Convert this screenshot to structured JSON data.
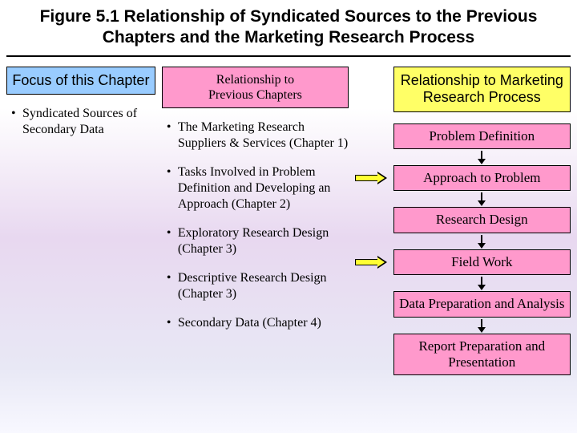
{
  "title": "Figure 5.1  Relationship of Syndicated Sources to the Previous Chapters and the Marketing Research Process",
  "colors": {
    "hdr_left_bg": "#99ccff",
    "hdr_mid_bg": "#ff99cc",
    "hdr_right_bg": "#ffff66",
    "stage_bg": "#ff99cc",
    "harrow_fill": "#ffff33"
  },
  "left": {
    "header": "Focus of this Chapter",
    "bullets": [
      "Syndicated Sources of Secondary Data"
    ]
  },
  "mid": {
    "header_line1": "Relationship to",
    "header_line2": "Previous Chapters",
    "bullets": [
      "The Marketing Research Suppliers & Services (Chapter 1)",
      "Tasks Involved in Problem Definition and Developing an Approach (Chapter 2)",
      "Exploratory Research Design (Chapter 3)",
      "Descriptive Research Design (Chapter 3)",
      "Secondary Data (Chapter 4)"
    ]
  },
  "right": {
    "header": "Relationship to Marketing Research Process",
    "stages": [
      "Problem Definition",
      "Approach to Problem",
      "Research Design",
      "Field Work",
      "Data Preparation and Analysis",
      "Report Preparation and Presentation"
    ]
  },
  "harrow_targets": [
    0,
    2
  ]
}
